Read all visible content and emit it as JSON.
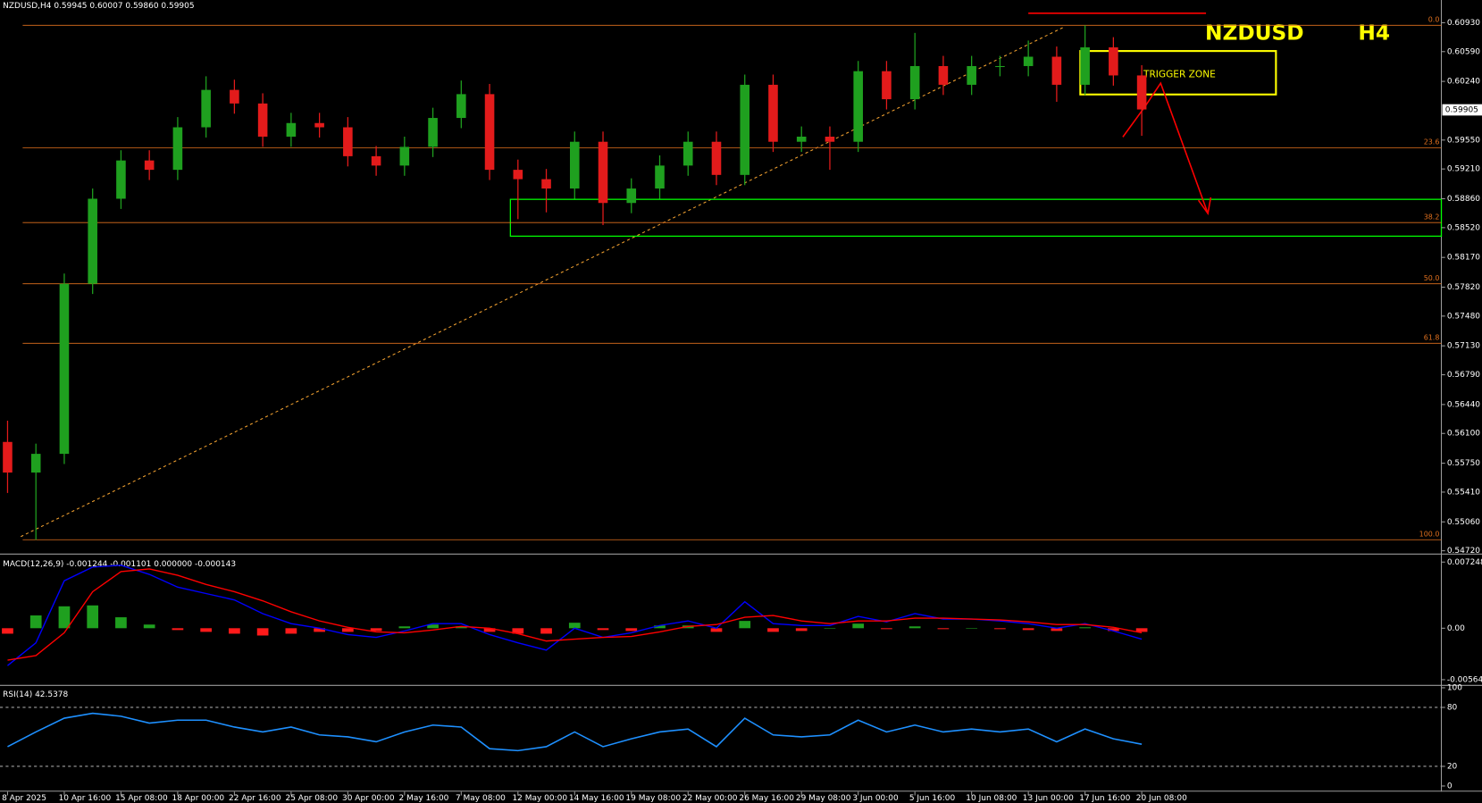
{
  "chart_data": [
    {
      "type": "candlestick",
      "header": "NZDUSD,H4  0.59945 0.60007 0.59860 0.59905",
      "symbol": "NZDUSD",
      "timeframe": "H4",
      "annotation": "TRIGGER ZONE",
      "categories": [
        "8 Apr 2025",
        null,
        "10 Apr 16:00",
        null,
        "15 Apr 08:00",
        null,
        "18 Apr 00:00",
        null,
        "22 Apr 16:00",
        null,
        "25 Apr 08:00",
        null,
        "30 Apr 00:00",
        null,
        "2 May 16:00",
        null,
        "7 May 08:00",
        null,
        "12 May 00:00",
        null,
        "14 May 16:00",
        null,
        "19 May 08:00",
        null,
        "22 May 00:00",
        null,
        "26 May 16:00",
        null,
        "29 May 08:00",
        null,
        "3 Jun 00:00",
        null,
        "5 Jun 16:00",
        null,
        "10 Jun 08:00",
        null,
        "13 Jun 00:00",
        null,
        "17 Jun 16:00",
        null,
        "20 Jun 08:00"
      ],
      "open": [
        0.56,
        0.5564,
        0.5586,
        0.5786,
        0.5886,
        0.5931,
        0.592,
        0.597,
        0.6014,
        0.5998,
        0.5959,
        0.5975,
        0.597,
        0.5936,
        0.5925,
        0.5947,
        0.5981,
        0.6009,
        0.592,
        0.5909,
        0.5898,
        0.5953,
        0.5881,
        0.5898,
        0.5925,
        0.5953,
        0.5914,
        0.602,
        0.5953,
        0.5959,
        0.5953,
        0.6036,
        0.6003,
        0.6042,
        0.602,
        0.6042,
        0.6042,
        0.6053,
        0.602,
        0.6064,
        0.6031
      ],
      "high": [
        0.5625,
        0.5598,
        0.5798,
        0.5898,
        0.5943,
        0.5943,
        0.5982,
        0.603,
        0.6026,
        0.601,
        0.5987,
        0.5987,
        0.5982,
        0.5948,
        0.5959,
        0.5993,
        0.6025,
        0.6021,
        0.5932,
        0.5921,
        0.5965,
        0.5965,
        0.591,
        0.5937,
        0.5965,
        0.5965,
        0.6032,
        0.6032,
        0.5971,
        0.5971,
        0.6048,
        0.6048,
        0.6081,
        0.6054,
        0.6054,
        0.6054,
        0.6072,
        0.6065,
        0.609,
        0.6076,
        0.6043
      ],
      "low": [
        0.554,
        0.5485,
        0.5574,
        0.5774,
        0.5874,
        0.5908,
        0.5908,
        0.5958,
        0.5986,
        0.5947,
        0.5947,
        0.5958,
        0.5924,
        0.5913,
        0.5913,
        0.5935,
        0.5969,
        0.5908,
        0.5862,
        0.587,
        0.5886,
        0.5855,
        0.5869,
        0.5886,
        0.5913,
        0.5902,
        0.5902,
        0.5941,
        0.5941,
        0.592,
        0.5941,
        0.5991,
        0.5991,
        0.6008,
        0.6008,
        0.603,
        0.603,
        0.6,
        0.6008,
        0.6019,
        0.596
      ],
      "close": [
        0.5564,
        0.5586,
        0.5786,
        0.5886,
        0.5931,
        0.592,
        0.597,
        0.6014,
        0.5998,
        0.5959,
        0.5975,
        0.597,
        0.5936,
        0.5925,
        0.5947,
        0.5981,
        0.6009,
        0.592,
        0.5909,
        0.5898,
        0.5953,
        0.5881,
        0.5898,
        0.5925,
        0.5953,
        0.5914,
        0.602,
        0.5953,
        0.5959,
        0.5953,
        0.6036,
        0.6003,
        0.6042,
        0.602,
        0.6042,
        0.6042,
        0.6053,
        0.602,
        0.6064,
        0.6031,
        0.5991
      ],
      "up_color": "#1fa01f",
      "down_color": "#e31b1b",
      "ylim": [
        0.54698,
        0.61197
      ],
      "yticks": [
        {
          "value": 0.6093,
          "label": "0.60930"
        },
        {
          "value": 0.6059,
          "label": "0.60590"
        },
        {
          "value": 0.6024,
          "label": "0.60240"
        },
        {
          "value": 0.5955,
          "label": "0.59550"
        },
        {
          "value": 0.5921,
          "label": "0.59210"
        },
        {
          "value": 0.5886,
          "label": "0.58860"
        },
        {
          "value": 0.5852,
          "label": "0.58520"
        },
        {
          "value": 0.5817,
          "label": "0.58170"
        },
        {
          "value": 0.5782,
          "label": "0.57820"
        },
        {
          "value": 0.5748,
          "label": "0.57480"
        },
        {
          "value": 0.5713,
          "label": "0.57130"
        },
        {
          "value": 0.5679,
          "label": "0.56790"
        },
        {
          "value": 0.5644,
          "label": "0.56440"
        },
        {
          "value": 0.561,
          "label": "0.56100"
        },
        {
          "value": 0.5575,
          "label": "0.55750"
        },
        {
          "value": 0.5541,
          "label": "0.55410"
        },
        {
          "value": 0.5506,
          "label": "0.55060"
        },
        {
          "value": 0.5472,
          "label": "0.54720"
        }
      ],
      "current_price": {
        "value": 0.59905,
        "label": "0.59905"
      },
      "fib_color": "#e0701e",
      "fib_levels": [
        {
          "level": "0.0",
          "price": 0.609
        },
        {
          "level": "23.6",
          "price": 0.5946
        },
        {
          "level": "38.2",
          "price": 0.5858
        },
        {
          "level": "50.0",
          "price": 0.5786
        },
        {
          "level": "61.8",
          "price": 0.5716
        },
        {
          "level": "100.0",
          "price": 0.5485
        }
      ]
    },
    {
      "type": "macd",
      "label": "MACD(12,26,9) -0.001244 -0.001101 0.000000 -0.000143",
      "series": [
        {
          "color": "#0000ff",
          "values": [
            -0.0041,
            -0.0016,
            0.0052,
            0.0067,
            0.0069,
            0.0059,
            0.0045,
            0.0038,
            0.0031,
            0.0016,
            0.0005,
            0,
            -0.0007,
            -0.001,
            -0.0003,
            0.0005,
            0.0005,
            -0.0007,
            -0.0016,
            -0.0024,
            0,
            -0.001,
            -0.0005,
            0.0003,
            0.0008,
            0,
            0.0029,
            0.0005,
            0.0003,
            0.0003,
            0.0013,
            0.0007,
            0.0016,
            0.001,
            0.001,
            0.0008,
            0.0005,
            0,
            0.0005,
            -0.0003,
            -0.0012
          ]
        },
        {
          "color": "#ff0000",
          "values": [
            -0.0035,
            -0.003,
            -0.0005,
            0.004,
            0.0062,
            0.0065,
            0.0058,
            0.0048,
            0.004,
            0.003,
            0.0018,
            0.0008,
            0.0001,
            -0.0004,
            -0.0005,
            -0.0002,
            0.0002,
            0,
            -0.0006,
            -0.0014,
            -0.0012,
            -0.001,
            -0.0009,
            -0.0004,
            0.0002,
            0.0004,
            0.0012,
            0.0014,
            0.0008,
            0.0005,
            0.0008,
            0.0008,
            0.0011,
            0.0011,
            0.001,
            0.0009,
            0.0007,
            0.0004,
            0.0004,
            0.0001,
            -0.0005
          ]
        }
      ],
      "histogram": {
        "up_color": "#1fa01f",
        "down_color": "#ff1a1a",
        "values": [
          -0.0006,
          0.0014,
          0.0024,
          0.0025,
          0.0012,
          0.0004,
          -0.0002,
          -0.0004,
          -0.0006,
          -0.0008,
          -0.0006,
          -0.0004,
          -0.0004,
          -0.0003,
          0.0002,
          0.0004,
          0.0002,
          -0.0004,
          -0.0006,
          -0.0006,
          0.0006,
          -0.0002,
          -0.0003,
          0.0003,
          0.0003,
          -0.0004,
          0.0008,
          -0.0004,
          -0.0003,
          0,
          0.0005,
          -0.0001,
          0.0002,
          -0.0001,
          0,
          -0.0001,
          -0.0002,
          -0.0003,
          0.0001,
          -0.0003,
          -0.0004
        ]
      },
      "ylim": [
        -0.00611,
        0.00797
      ],
      "yticks": [
        0.007248,
        {
          "value": 0,
          "label": "0.00"
        },
        -0.005641
      ]
    },
    {
      "type": "line",
      "label": "RSI(14) 42.5378",
      "color": "#1e90ff",
      "values": [
        40,
        55,
        69,
        74,
        71,
        64,
        67,
        67,
        60,
        55,
        60,
        52,
        50,
        45,
        55,
        62,
        60,
        38,
        36,
        40,
        55,
        40,
        48,
        55,
        58,
        40,
        69,
        52,
        50,
        52,
        67,
        55,
        62,
        55,
        58,
        55,
        58,
        45,
        58,
        48,
        42.5
      ],
      "ylim": [
        0,
        100
      ],
      "yticks": [
        100,
        80,
        20,
        0
      ],
      "levels": [
        80,
        20
      ]
    }
  ]
}
